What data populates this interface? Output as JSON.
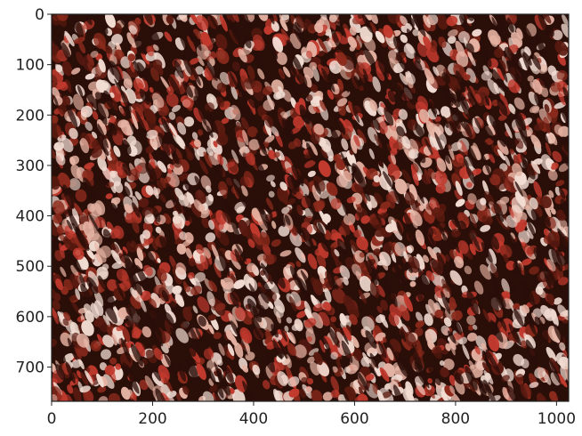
{
  "image": {
    "description": "crowd photograph rendered with a red colormap",
    "colormap_colors": [
      "#2a0e08",
      "#5a1a10",
      "#8b2a1c",
      "#c23a2e",
      "#e6b3a3",
      "#f2dcd2"
    ],
    "background": "#ffffff",
    "axis_color": "#222222"
  },
  "axes": {
    "x_ticks": [
      "0",
      "200",
      "400",
      "600",
      "800",
      "1000"
    ],
    "y_ticks": [
      "0",
      "100",
      "200",
      "300",
      "400",
      "500",
      "600",
      "700"
    ],
    "x_range": [
      0,
      1024
    ],
    "y_range": [
      0,
      768
    ]
  }
}
